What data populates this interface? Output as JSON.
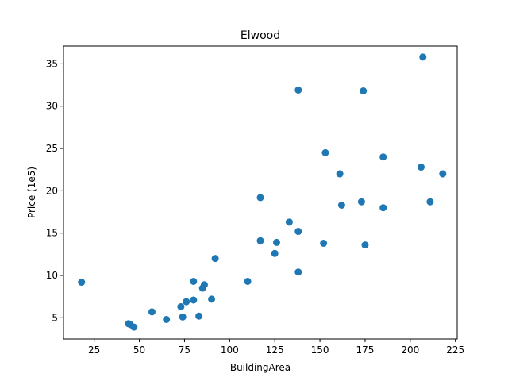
{
  "chart_data": {
    "type": "scatter",
    "title": "Elwood",
    "xlabel": "BuildingArea",
    "ylabel": "Price (1e5)",
    "xlim": [
      8,
      226
    ],
    "ylim": [
      2.5,
      37.1
    ],
    "xticks": [
      25,
      50,
      75,
      100,
      125,
      150,
      175,
      200,
      225
    ],
    "yticks": [
      5,
      10,
      15,
      20,
      25,
      30,
      35
    ],
    "grid": false,
    "marker_color": "#1f77b4",
    "series": [
      {
        "points": [
          [
            18,
            9.2
          ],
          [
            44,
            4.3
          ],
          [
            45,
            4.2
          ],
          [
            47,
            3.9
          ],
          [
            57,
            5.7
          ],
          [
            65,
            4.8
          ],
          [
            73,
            6.3
          ],
          [
            74,
            5.1
          ],
          [
            76,
            6.9
          ],
          [
            80,
            7.1
          ],
          [
            80,
            9.3
          ],
          [
            83,
            5.2
          ],
          [
            85,
            8.5
          ],
          [
            86,
            8.9
          ],
          [
            90,
            7.2
          ],
          [
            92,
            12.0
          ],
          [
            110,
            9.3
          ],
          [
            117,
            19.2
          ],
          [
            117,
            14.1
          ],
          [
            125,
            12.6
          ],
          [
            126,
            13.9
          ],
          [
            133,
            16.3
          ],
          [
            138,
            31.9
          ],
          [
            138,
            15.2
          ],
          [
            138,
            10.4
          ],
          [
            152,
            13.8
          ],
          [
            153,
            24.5
          ],
          [
            161,
            22.0
          ],
          [
            162,
            18.3
          ],
          [
            173,
            18.7
          ],
          [
            174,
            31.8
          ],
          [
            175,
            13.6
          ],
          [
            185,
            24.0
          ],
          [
            185,
            18.0
          ],
          [
            206,
            22.8
          ],
          [
            207,
            35.8
          ],
          [
            211,
            18.7
          ],
          [
            218,
            22.0
          ]
        ]
      }
    ]
  }
}
